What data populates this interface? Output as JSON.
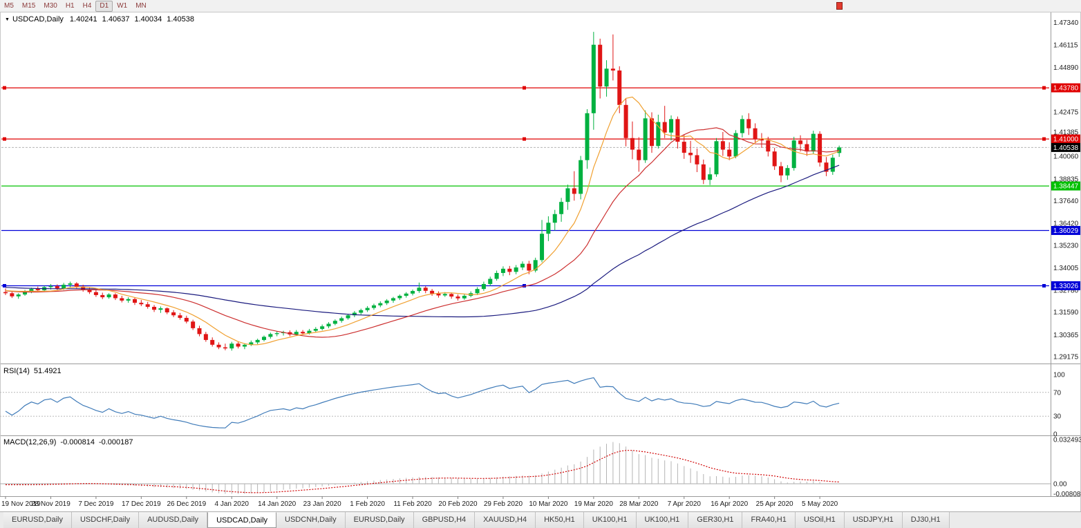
{
  "toolbar": {
    "timeframes": [
      "M5",
      "M15",
      "M30",
      "H1",
      "H4",
      "D1",
      "W1",
      "MN"
    ],
    "active_timeframe": "D1"
  },
  "chart_header": {
    "collapse_icon": "▼",
    "symbol_period": "USDCAD,Daily",
    "open": "1.40241",
    "high": "1.40637",
    "low": "1.40034",
    "close": "1.40538"
  },
  "colors": {
    "candle_up": "#00b140",
    "candle_down": "#e01515",
    "ma_fast": "#f0a030",
    "ma_mid": "#cc2e2e",
    "ma_slow": "#1a1a7e",
    "rsi_line": "#3e7ab8",
    "macd_hist": "#b4b4b4",
    "macd_signal": "#d00000",
    "current_badge": "#000000",
    "axis_text": "#1b1b1b",
    "grid": "#b4b4b4",
    "timeframe_text": "#8b3a3a"
  },
  "price_axis": {
    "range_top": 1.478,
    "range_bottom": 1.288,
    "ticks": [
      "1.47340",
      "1.46115",
      "1.44890",
      "1.42475",
      "1.41385",
      "1.40060",
      "1.38835",
      "1.37640",
      "1.36420",
      "1.35230",
      "1.34005",
      "1.32780",
      "1.31590",
      "1.30365",
      "1.29175"
    ]
  },
  "hlines": [
    {
      "value": 1.4378,
      "label": "1.43780",
      "color": "#e00000",
      "handles": true
    },
    {
      "value": 1.41,
      "label": "1.41000",
      "color": "#e00000",
      "handles": true
    },
    {
      "value": 1.38447,
      "label": "1.38447",
      "color": "#00c000",
      "handles": false
    },
    {
      "value": 1.36029,
      "label": "1.36029",
      "color": "#0000d8",
      "handles": false
    },
    {
      "value": 1.33026,
      "label": "1.33026",
      "color": "#0000d8",
      "handles": true
    }
  ],
  "current_price": {
    "value": 1.40538,
    "label": "1.40538"
  },
  "chart_data": {
    "type": "candlestick",
    "symbol": "USDCAD",
    "timeframe": "Daily",
    "title": "USDCAD,Daily",
    "candles_per_label": 7,
    "x_labels": [
      "19 Nov 2019",
      "28 Nov 2019",
      "7 Dec 2019",
      "17 Dec 2019",
      "26 Dec 2019",
      "4 Jan 2020",
      "14 Jan 2020",
      "23 Jan 2020",
      "1 Feb 2020",
      "11 Feb 2020",
      "20 Feb 2020",
      "29 Feb 2020",
      "10 Mar 2020",
      "19 Mar 2020",
      "28 Mar 2020",
      "7 Apr 2020",
      "16 Apr 2020",
      "25 Apr 2020",
      "5 May 2020"
    ],
    "moving_averages": [
      {
        "name": "fast",
        "period": 8
      },
      {
        "name": "medium",
        "period": 21
      },
      {
        "name": "slow",
        "period": 55
      }
    ],
    "candles": [
      [
        1.3268,
        1.3288,
        1.3252,
        1.3262
      ],
      [
        1.3262,
        1.327,
        1.3236,
        1.3245
      ],
      [
        1.3245,
        1.3262,
        1.3232,
        1.3255
      ],
      [
        1.3255,
        1.328,
        1.3248,
        1.3272
      ],
      [
        1.3272,
        1.3292,
        1.3262,
        1.3285
      ],
      [
        1.3285,
        1.3298,
        1.327,
        1.3278
      ],
      [
        1.3278,
        1.3302,
        1.3272,
        1.3295
      ],
      [
        1.3295,
        1.3312,
        1.3282,
        1.33
      ],
      [
        1.33,
        1.331,
        1.3278,
        1.3288
      ],
      [
        1.3288,
        1.3318,
        1.328,
        1.3308
      ],
      [
        1.3308,
        1.3325,
        1.3295,
        1.3315
      ],
      [
        1.3315,
        1.3322,
        1.3288,
        1.3298
      ],
      [
        1.3298,
        1.3308,
        1.327,
        1.328
      ],
      [
        1.328,
        1.3292,
        1.3258,
        1.3268
      ],
      [
        1.3268,
        1.3278,
        1.3242,
        1.3252
      ],
      [
        1.3252,
        1.3265,
        1.323,
        1.324
      ],
      [
        1.324,
        1.3262,
        1.3232,
        1.3255
      ],
      [
        1.3255,
        1.3262,
        1.3225,
        1.3235
      ],
      [
        1.3235,
        1.3248,
        1.3212,
        1.3222
      ],
      [
        1.3222,
        1.324,
        1.321,
        1.323
      ],
      [
        1.323,
        1.3238,
        1.3198,
        1.321
      ],
      [
        1.321,
        1.3225,
        1.3192,
        1.3202
      ],
      [
        1.3202,
        1.3215,
        1.3178,
        1.3188
      ],
      [
        1.3188,
        1.3198,
        1.316,
        1.3172
      ],
      [
        1.3172,
        1.319,
        1.3155,
        1.318
      ],
      [
        1.318,
        1.3185,
        1.3148,
        1.3158
      ],
      [
        1.3158,
        1.317,
        1.3132,
        1.3142
      ],
      [
        1.3142,
        1.3155,
        1.3118,
        1.3128
      ],
      [
        1.3128,
        1.314,
        1.3098,
        1.3108
      ],
      [
        1.3108,
        1.3118,
        1.3062,
        1.3072
      ],
      [
        1.3072,
        1.3085,
        1.3028,
        1.304
      ],
      [
        1.304,
        1.3052,
        1.2998,
        1.3008
      ],
      [
        1.3008,
        1.3022,
        1.2972,
        1.2982
      ],
      [
        1.2982,
        1.2995,
        1.2958,
        1.2968
      ],
      [
        1.2968,
        1.2988,
        1.2952,
        1.2962
      ],
      [
        1.2962,
        1.2998,
        1.295,
        1.2988
      ],
      [
        1.2988,
        1.2998,
        1.2962,
        1.2972
      ],
      [
        1.2972,
        1.299,
        1.2958,
        1.2982
      ],
      [
        1.2982,
        1.3005,
        1.2975,
        1.2995
      ],
      [
        1.2995,
        1.3015,
        1.2985,
        1.3008
      ],
      [
        1.3008,
        1.3032,
        1.3,
        1.3025
      ],
      [
        1.3025,
        1.3048,
        1.3015,
        1.304
      ],
      [
        1.304,
        1.3055,
        1.3028,
        1.3045
      ],
      [
        1.3045,
        1.3058,
        1.3032,
        1.305
      ],
      [
        1.305,
        1.306,
        1.3028,
        1.3038
      ],
      [
        1.3038,
        1.3062,
        1.303,
        1.3052
      ],
      [
        1.3052,
        1.3062,
        1.3035,
        1.3044
      ],
      [
        1.3044,
        1.3068,
        1.3038,
        1.3058
      ],
      [
        1.3058,
        1.3078,
        1.3048,
        1.3068
      ],
      [
        1.3068,
        1.3092,
        1.306,
        1.3082
      ],
      [
        1.3082,
        1.3105,
        1.3072,
        1.3096
      ],
      [
        1.3096,
        1.312,
        1.3088,
        1.3112
      ],
      [
        1.3112,
        1.3135,
        1.3102,
        1.3126
      ],
      [
        1.3126,
        1.315,
        1.3118,
        1.3142
      ],
      [
        1.3142,
        1.3165,
        1.3132,
        1.3156
      ],
      [
        1.3156,
        1.3178,
        1.3146,
        1.317
      ],
      [
        1.317,
        1.3192,
        1.316,
        1.3182
      ],
      [
        1.3182,
        1.3205,
        1.3172,
        1.3196
      ],
      [
        1.3196,
        1.3218,
        1.3186,
        1.3208
      ],
      [
        1.3208,
        1.323,
        1.3198,
        1.3222
      ],
      [
        1.3222,
        1.3242,
        1.321,
        1.3235
      ],
      [
        1.3235,
        1.3255,
        1.3225,
        1.3248
      ],
      [
        1.3248,
        1.3268,
        1.3238,
        1.326
      ],
      [
        1.326,
        1.3282,
        1.325,
        1.3274
      ],
      [
        1.3274,
        1.332,
        1.3264,
        1.3292
      ],
      [
        1.3292,
        1.33,
        1.3262,
        1.3275
      ],
      [
        1.3275,
        1.3285,
        1.3248,
        1.326
      ],
      [
        1.326,
        1.3272,
        1.3238,
        1.325
      ],
      [
        1.325,
        1.3268,
        1.3242,
        1.3258
      ],
      [
        1.3258,
        1.3265,
        1.3232,
        1.3244
      ],
      [
        1.3244,
        1.3255,
        1.3222,
        1.3234
      ],
      [
        1.3234,
        1.3258,
        1.3226,
        1.3248
      ],
      [
        1.3248,
        1.3272,
        1.324,
        1.3262
      ],
      [
        1.3262,
        1.3295,
        1.3252,
        1.3285
      ],
      [
        1.3285,
        1.3325,
        1.3275,
        1.3312
      ],
      [
        1.3312,
        1.3352,
        1.3302,
        1.334
      ],
      [
        1.334,
        1.3385,
        1.333,
        1.3372
      ],
      [
        1.3372,
        1.3408,
        1.3355,
        1.3395
      ],
      [
        1.3395,
        1.341,
        1.336,
        1.3378
      ],
      [
        1.3378,
        1.3415,
        1.3365,
        1.3402
      ],
      [
        1.3402,
        1.3435,
        1.3388,
        1.3422
      ],
      [
        1.3422,
        1.3438,
        1.3365,
        1.3385
      ],
      [
        1.3385,
        1.3455,
        1.3375,
        1.3442
      ],
      [
        1.3442,
        1.366,
        1.343,
        1.3585
      ],
      [
        1.3585,
        1.368,
        1.3545,
        1.3645
      ],
      [
        1.3645,
        1.3715,
        1.3602,
        1.3692
      ],
      [
        1.3692,
        1.378,
        1.365,
        1.3758
      ],
      [
        1.3758,
        1.3852,
        1.3715,
        1.3832
      ],
      [
        1.3832,
        1.3925,
        1.3765,
        1.3802
      ],
      [
        1.3802,
        1.4008,
        1.3772,
        1.3985
      ],
      [
        1.3985,
        1.4262,
        1.3938,
        1.424
      ],
      [
        1.424,
        1.4682,
        1.415,
        1.4612
      ],
      [
        1.4612,
        1.4645,
        1.432,
        1.4385
      ],
      [
        1.4385,
        1.4528,
        1.433,
        1.4482
      ],
      [
        1.4482,
        1.4668,
        1.4418,
        1.4472
      ],
      [
        1.4472,
        1.4495,
        1.424,
        1.4285
      ],
      [
        1.4285,
        1.4322,
        1.406,
        1.4105
      ],
      [
        1.4105,
        1.4195,
        1.399,
        1.4042
      ],
      [
        1.4042,
        1.411,
        1.3922,
        1.3985
      ],
      [
        1.3985,
        1.4255,
        1.397,
        1.4212
      ],
      [
        1.4212,
        1.4245,
        1.4025,
        1.4062
      ],
      [
        1.4062,
        1.4232,
        1.4048,
        1.4192
      ],
      [
        1.4192,
        1.428,
        1.4105,
        1.4135
      ],
      [
        1.4135,
        1.4228,
        1.4092,
        1.4208
      ],
      [
        1.4208,
        1.4222,
        1.4048,
        1.4085
      ],
      [
        1.4085,
        1.4125,
        1.3992,
        1.4025
      ],
      [
        1.4025,
        1.409,
        1.397,
        1.4012
      ],
      [
        1.4012,
        1.4048,
        1.392,
        1.3962
      ],
      [
        1.3962,
        1.3988,
        1.3855,
        1.3878
      ],
      [
        1.3878,
        1.3945,
        1.385,
        1.3908
      ],
      [
        1.3908,
        1.4105,
        1.3895,
        1.4088
      ],
      [
        1.4088,
        1.4138,
        1.4008,
        1.4042
      ],
      [
        1.4042,
        1.4082,
        1.3985,
        1.4005
      ],
      [
        1.4005,
        1.4148,
        1.3995,
        1.4132
      ],
      [
        1.4132,
        1.4228,
        1.4108,
        1.4208
      ],
      [
        1.4208,
        1.424,
        1.4122,
        1.4158
      ],
      [
        1.4158,
        1.4185,
        1.4078,
        1.4098
      ],
      [
        1.4098,
        1.4132,
        1.4052,
        1.4092
      ],
      [
        1.4092,
        1.4112,
        1.4005,
        1.4032
      ],
      [
        1.4032,
        1.4052,
        1.3932,
        1.3952
      ],
      [
        1.3952,
        1.3975,
        1.3865,
        1.3902
      ],
      [
        1.3902,
        1.3958,
        1.3878,
        1.3942
      ],
      [
        1.3942,
        1.4112,
        1.3928,
        1.4092
      ],
      [
        1.4092,
        1.412,
        1.4032,
        1.4072
      ],
      [
        1.4072,
        1.4095,
        1.4008,
        1.4032
      ],
      [
        1.4032,
        1.4145,
        1.4018,
        1.4128
      ],
      [
        1.4128,
        1.4142,
        1.395,
        1.3972
      ],
      [
        1.3972,
        1.4002,
        1.3898,
        1.3922
      ],
      [
        1.3922,
        1.4015,
        1.3905,
        1.3998
      ],
      [
        1.4024,
        1.4064,
        1.4003,
        1.4054
      ]
    ]
  },
  "rsi_panel": {
    "label": "RSI(14)",
    "value": "51.4921",
    "period": 14,
    "axis_labels": [
      "100",
      "70",
      "30",
      "0"
    ],
    "levels": [
      70,
      30
    ]
  },
  "macd_panel": {
    "label": "MACD(12,26,9)",
    "main_value": "-0.000814",
    "signal_value": "-0.000187",
    "fast": 12,
    "slow": 26,
    "signal": 9,
    "axis_labels": [
      "0.032493",
      "0.00",
      "-0.008086"
    ],
    "axis_max": 0.032493,
    "axis_min": -0.008086
  },
  "tabs": {
    "active_index": 3,
    "items": [
      "EURUSD,Daily",
      "USDCHF,Daily",
      "AUDUSD,Daily",
      "USDCAD,Daily",
      "USDCNH,Daily",
      "EURUSD,Daily",
      "GBPUSD,H4",
      "XAUUSD,H4",
      "HK50,H1",
      "UK100,H1",
      "UK100,H1",
      "GER30,H1",
      "FRA40,H1",
      "USOil,H1",
      "USDJPY,H1",
      "DJ30,H1"
    ]
  }
}
